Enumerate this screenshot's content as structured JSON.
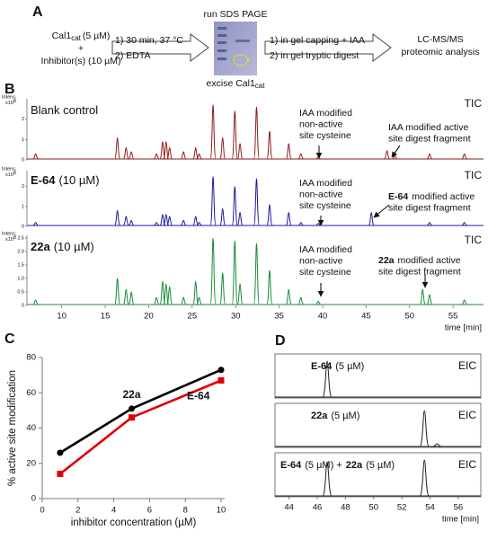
{
  "panel_labels": [
    "A",
    "B",
    "C",
    "D"
  ],
  "workflow": {
    "enzyme": "Cal1",
    "enzyme_sub": "cat",
    "enzyme_conc": "(5 µM)",
    "plus": "+",
    "inhibitor": "Inhibitor(s) (10 µM)",
    "step1": [
      "1) 30 min, 37 °C",
      "2) EDTA"
    ],
    "gel_title": "run SDS PAGE",
    "excise": "excise Cal1",
    "excise_sub": "cat",
    "step2": [
      "1) in gel capping + IAA",
      "2) in gel tryptic digest"
    ],
    "analysis": [
      "LC-MS/MS",
      "proteomic analysis"
    ]
  },
  "chart_data": [
    {
      "type": "chromatogram",
      "label": [
        {
          "text": "Blank control"
        }
      ],
      "tag": "TIC",
      "color": "#8b1c1c",
      "yunit": "Intens.",
      "yscale": "x10",
      "yscale_exp": "8",
      "x": [
        7.0,
        16.4,
        17.4,
        18.0,
        20.9,
        21.6,
        22.0,
        22.4,
        24.0,
        25.4,
        25.8,
        27.4,
        28.5,
        29.9,
        30.5,
        32.4,
        33.9,
        36.1,
        37.5,
        39.5,
        47.4,
        48.3,
        52.3,
        56.3
      ],
      "values": [
        0.3,
        1.1,
        0.6,
        0.4,
        0.3,
        0.9,
        0.9,
        0.6,
        0.4,
        0.6,
        0.3,
        2.7,
        1.1,
        2.4,
        0.8,
        2.6,
        1.4,
        0.8,
        0.3,
        0.15,
        0.45,
        0.2,
        0.3,
        0.3
      ],
      "xlim": [
        6,
        58.5
      ],
      "ylim": [
        0,
        3
      ],
      "yticks": [
        0,
        1,
        2
      ],
      "annotations": [
        {
          "lines": [
            [
              {
                "text": "IAA modified"
              }
            ],
            [
              {
                "text": "non-active"
              }
            ],
            [
              {
                "text": "site cysteine"
              }
            ]
          ]
        },
        {
          "lines": [
            [
              {
                "text": "IAA modified active"
              }
            ],
            [
              {
                "text": "site digest fragment"
              }
            ]
          ]
        }
      ]
    },
    {
      "type": "chromatogram",
      "label": [
        {
          "text": "E-64",
          "bold": true
        },
        {
          "text": "(10 µM)"
        }
      ],
      "tag": "TIC",
      "color": "#1a1aa0",
      "yunit": "Intens.",
      "yscale": "x10",
      "yscale_exp": "8",
      "x": [
        7.0,
        16.4,
        17.4,
        18.0,
        20.9,
        21.6,
        22.0,
        22.4,
        24.0,
        25.4,
        25.8,
        27.4,
        28.5,
        29.9,
        30.5,
        32.4,
        33.9,
        36.1,
        37.5,
        39.5,
        45.6,
        52.3,
        56.3
      ],
      "values": [
        0.2,
        0.8,
        0.5,
        0.3,
        0.2,
        0.6,
        0.6,
        0.5,
        0.3,
        0.5,
        0.2,
        2.5,
        0.9,
        2.0,
        0.7,
        2.4,
        1.1,
        0.7,
        0.2,
        0.15,
        0.7,
        0.2,
        0.2
      ],
      "xlim": [
        6,
        58.5
      ],
      "ylim": [
        0,
        2.8
      ],
      "yticks": [
        0,
        1,
        2
      ],
      "annotations": [
        {
          "lines": [
            [
              {
                "text": "IAA modified"
              }
            ],
            [
              {
                "text": "non-active"
              }
            ],
            [
              {
                "text": "site cysteine"
              }
            ]
          ]
        },
        {
          "lines": [
            [
              {
                "text": "E-64",
                "bold": true
              },
              {
                "text": "modified active"
              }
            ],
            [
              {
                "text": "site digest fragment"
              }
            ]
          ]
        }
      ]
    },
    {
      "type": "chromatogram",
      "label": [
        {
          "text": "22a",
          "bold": true
        },
        {
          "text": "(10 µM)"
        }
      ],
      "tag": "TIC",
      "color": "#1a8a3a",
      "yunit": "Intens.",
      "yscale": "x10",
      "yscale_exp": "8",
      "x": [
        7.0,
        16.4,
        17.4,
        18.0,
        20.9,
        21.6,
        22.0,
        22.4,
        24.0,
        25.4,
        25.8,
        27.4,
        28.5,
        29.9,
        30.5,
        32.4,
        33.9,
        36.1,
        37.5,
        39.5,
        51.5,
        52.3,
        56.3
      ],
      "values": [
        0.2,
        1.0,
        0.6,
        0.5,
        0.3,
        0.9,
        0.8,
        0.7,
        0.3,
        0.9,
        0.3,
        2.5,
        1.2,
        2.4,
        0.8,
        2.3,
        1.3,
        0.6,
        0.3,
        0.15,
        0.6,
        0.4,
        0.2
      ],
      "xlim": [
        6,
        58.5
      ],
      "ylim": [
        0,
        2.6
      ],
      "yticks": [
        0,
        0.5,
        {
          "value": 1,
          "label": "1.0"
        },
        1.5,
        {
          "value": 2,
          "label": "2.0"
        },
        2.5
      ],
      "xticks": [
        10,
        15,
        20,
        25,
        30,
        35,
        40,
        45,
        50,
        55
      ],
      "xlabel": "time [min]",
      "annotations": [
        {
          "lines": [
            [
              {
                "text": "IAA modified"
              }
            ],
            [
              {
                "text": "non-active"
              }
            ],
            [
              {
                "text": "site cysteine"
              }
            ]
          ]
        },
        {
          "lines": [
            [
              {
                "text": "22a",
                "bold": true
              },
              {
                "text": "modified active"
              }
            ],
            [
              {
                "text": "site digest fragment"
              }
            ]
          ]
        }
      ]
    },
    {
      "type": "scatter",
      "x": [
        1,
        5,
        10
      ],
      "series": [
        {
          "name": "22a",
          "color": "#000000",
          "marker": "circle",
          "values": [
            26,
            51,
            73
          ]
        },
        {
          "name": "E-64",
          "color": "#e00000",
          "marker": "square",
          "values": [
            14,
            46,
            67
          ]
        }
      ],
      "xlim": [
        0,
        10.2
      ],
      "ylim": [
        0,
        80
      ],
      "xticks": [
        0,
        2,
        4,
        6,
        8,
        10
      ],
      "yticks": [
        0,
        20,
        40,
        60,
        80
      ],
      "xlabel": "inhibitor concentration  (µM)",
      "ylabel": "% active site modification"
    },
    {
      "type": "chromatogram",
      "label": [
        {
          "text": "E-64",
          "bold": true
        },
        {
          "text": "(5 µM)"
        }
      ],
      "tag": "EIC",
      "color": "#222222",
      "x": [
        46.7
      ],
      "values": [
        1
      ],
      "xlim": [
        43,
        57.6
      ],
      "ylim": [
        0,
        1.2
      ]
    },
    {
      "type": "chromatogram",
      "label": [
        {
          "text": "22a",
          "bold": true
        },
        {
          "text": "(5 µM)"
        }
      ],
      "tag": "EIC",
      "color": "#222222",
      "x": [
        53.6,
        54.5
      ],
      "values": [
        1,
        0.1
      ],
      "xlim": [
        43,
        57.6
      ],
      "ylim": [
        0,
        1.2
      ]
    },
    {
      "type": "chromatogram",
      "label": [
        {
          "text": "E-64",
          "bold": true
        },
        {
          "text": "(5 µM) +"
        },
        {
          "text": "22a",
          "bold": true
        },
        {
          "text": "(5 µM)"
        }
      ],
      "tag": "EIC",
      "color": "#222222",
      "x": [
        46.7,
        53.6
      ],
      "values": [
        0.95,
        1
      ],
      "xlim": [
        43,
        57.6
      ],
      "ylim": [
        0,
        1.2
      ],
      "xticks": [
        44,
        46,
        48,
        50,
        52,
        54,
        56
      ],
      "xlabel": "time [min]"
    }
  ]
}
